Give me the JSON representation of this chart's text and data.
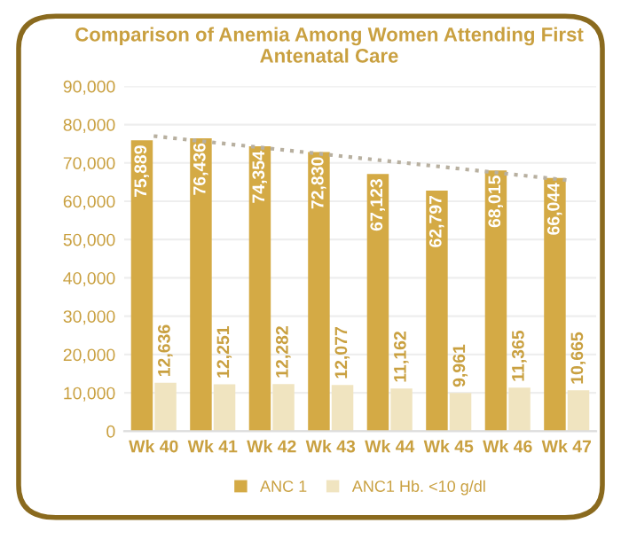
{
  "chart_data": {
    "type": "bar",
    "title": "Comparison of Anemia Among Women Attending First Antenatal Care",
    "categories": [
      "Wk 40",
      "Wk 41",
      "Wk 42",
      "Wk 43",
      "Wk 44",
      "Wk 45",
      "Wk 46",
      "Wk 47"
    ],
    "series": [
      {
        "name": "ANC 1",
        "color": "#d4aa45",
        "values": [
          75889,
          76436,
          74354,
          72830,
          67123,
          62797,
          68015,
          66044
        ],
        "value_labels": [
          "75,889",
          "76,436",
          "74,354",
          "72,830",
          "67,123",
          "62,797",
          "68,015",
          "66,044"
        ]
      },
      {
        "name": "ANC1 Hb. <10 g/dl",
        "color": "#f0e4c0",
        "values": [
          12636,
          12251,
          12282,
          12077,
          11162,
          9961,
          11365,
          10665
        ],
        "value_labels": [
          "12,636",
          "12,251",
          "12,282",
          "12,077",
          "11,162",
          "9,961",
          "11,365",
          "10,665"
        ]
      },
      {
        "type": "line",
        "color": "#b8b0a0",
        "line_style": "dotted",
        "values": [
          77000,
          null,
          null,
          null,
          null,
          null,
          null,
          65500
        ]
      }
    ],
    "ylim": [
      0,
      90000
    ],
    "yticks": [
      {
        "value": 0,
        "label": "0"
      },
      {
        "value": 10000,
        "label": "10,000"
      },
      {
        "value": 20000,
        "label": "20,000"
      },
      {
        "value": 30000,
        "label": "30,000"
      },
      {
        "value": 40000,
        "label": "40,000"
      },
      {
        "value": 50000,
        "label": "50,000"
      },
      {
        "value": 60000,
        "label": "60,000"
      },
      {
        "value": 70000,
        "label": "70,000"
      },
      {
        "value": 80000,
        "label": "80,000"
      },
      {
        "value": 90000,
        "label": "90,000"
      }
    ],
    "grid": "y",
    "legend": "bottom"
  }
}
